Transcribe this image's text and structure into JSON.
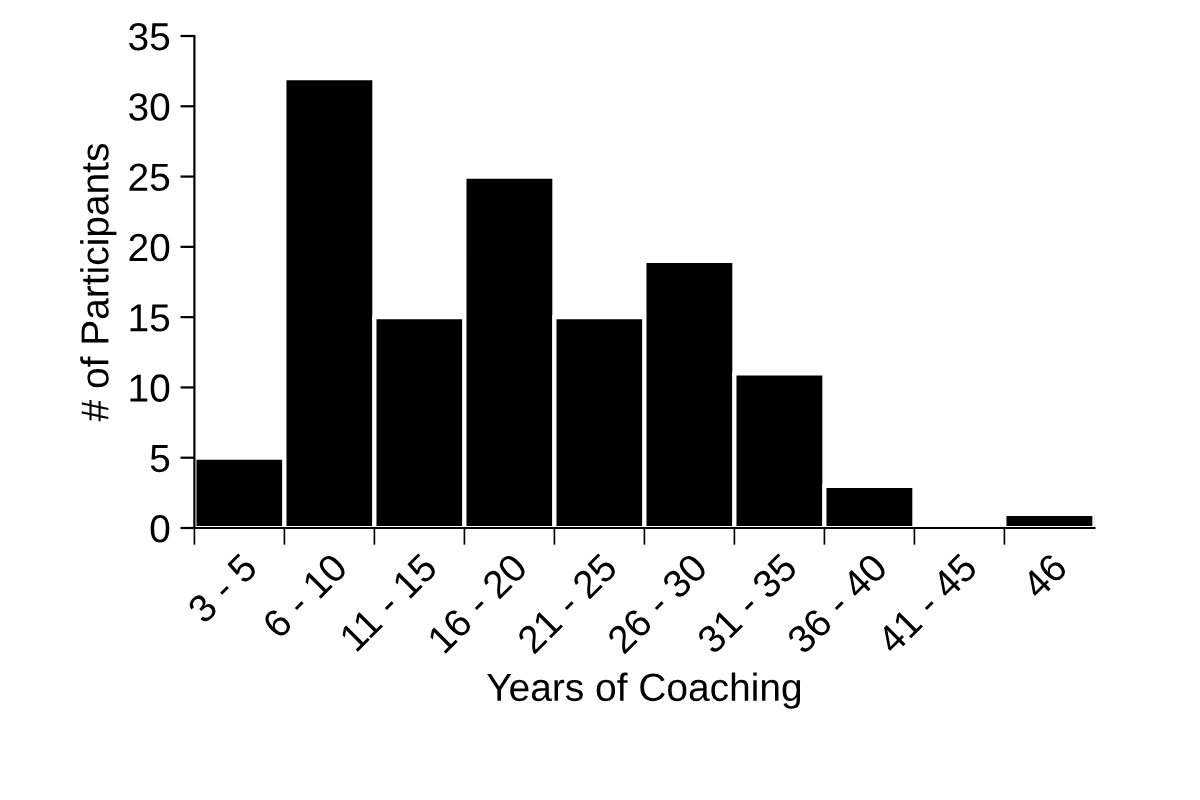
{
  "chart_data": {
    "type": "bar",
    "xlabel": "Years of Coaching",
    "ylabel": "# of Participants",
    "categories": [
      "3 - 5",
      "6 - 10",
      "11 - 15",
      "16 - 20",
      "21 - 25",
      "26 - 30",
      "31 - 35",
      "36 - 40",
      "41 - 45",
      "46"
    ],
    "values": [
      5,
      32,
      15,
      25,
      15,
      19,
      11,
      3,
      0,
      1
    ],
    "color": "#000000",
    "ylim": [
      0,
      35
    ],
    "yticks": [
      0,
      5,
      10,
      15,
      20,
      25,
      30,
      35
    ],
    "grid": false,
    "legend": false
  }
}
